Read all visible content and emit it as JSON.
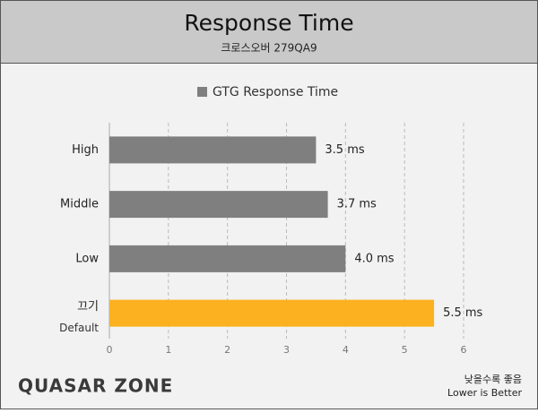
{
  "chart_data": {
    "type": "bar",
    "orientation": "horizontal",
    "title": "Response Time",
    "subtitle": "크로스오버 279QA9",
    "categories": [
      "High",
      "Middle",
      "Low",
      "끄기"
    ],
    "sublabels": [
      null,
      null,
      null,
      "Default"
    ],
    "series": [
      {
        "name": "GTG Response Time",
        "color": "#7f7f7f",
        "colors": [
          "#7f7f7f",
          "#7f7f7f",
          "#7f7f7f",
          "#fbb120"
        ],
        "values": [
          3.5,
          3.7,
          4.0,
          5.5
        ],
        "value_labels": [
          "3.5 ms",
          "3.7 ms",
          "4.0 ms",
          "5.5 ms"
        ]
      }
    ],
    "xlim": [
      0,
      6
    ],
    "xticks": [
      0,
      1,
      2,
      3,
      4,
      5,
      6
    ],
    "grid": true,
    "legend": "top",
    "brand": "QUASAR ZONE",
    "notes": [
      "낮을수록 좋음",
      "Lower is Better"
    ]
  }
}
